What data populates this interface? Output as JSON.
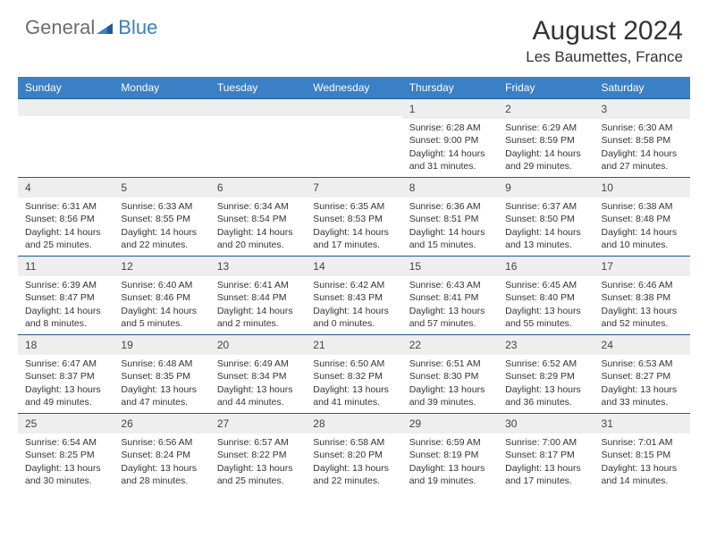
{
  "logo": {
    "general": "General",
    "blue": "Blue"
  },
  "header": {
    "title": "August 2024",
    "location": "Les Baumettes, France"
  },
  "colors": {
    "header_bg": "#3b7fc4",
    "header_text": "#ffffff",
    "daynum_bg": "#eeeeee",
    "cell_border": "#1d5a99",
    "body_text": "#333333",
    "logo_general": "#6d6d6d",
    "logo_blue": "#3b7fc4"
  },
  "weekdays": [
    "Sunday",
    "Monday",
    "Tuesday",
    "Wednesday",
    "Thursday",
    "Friday",
    "Saturday"
  ],
  "weeks": [
    [
      null,
      null,
      null,
      null,
      {
        "n": "1",
        "sr": "Sunrise: 6:28 AM",
        "ss": "Sunset: 9:00 PM",
        "d1": "Daylight: 14 hours",
        "d2": "and 31 minutes."
      },
      {
        "n": "2",
        "sr": "Sunrise: 6:29 AM",
        "ss": "Sunset: 8:59 PM",
        "d1": "Daylight: 14 hours",
        "d2": "and 29 minutes."
      },
      {
        "n": "3",
        "sr": "Sunrise: 6:30 AM",
        "ss": "Sunset: 8:58 PM",
        "d1": "Daylight: 14 hours",
        "d2": "and 27 minutes."
      }
    ],
    [
      {
        "n": "4",
        "sr": "Sunrise: 6:31 AM",
        "ss": "Sunset: 8:56 PM",
        "d1": "Daylight: 14 hours",
        "d2": "and 25 minutes."
      },
      {
        "n": "5",
        "sr": "Sunrise: 6:33 AM",
        "ss": "Sunset: 8:55 PM",
        "d1": "Daylight: 14 hours",
        "d2": "and 22 minutes."
      },
      {
        "n": "6",
        "sr": "Sunrise: 6:34 AM",
        "ss": "Sunset: 8:54 PM",
        "d1": "Daylight: 14 hours",
        "d2": "and 20 minutes."
      },
      {
        "n": "7",
        "sr": "Sunrise: 6:35 AM",
        "ss": "Sunset: 8:53 PM",
        "d1": "Daylight: 14 hours",
        "d2": "and 17 minutes."
      },
      {
        "n": "8",
        "sr": "Sunrise: 6:36 AM",
        "ss": "Sunset: 8:51 PM",
        "d1": "Daylight: 14 hours",
        "d2": "and 15 minutes."
      },
      {
        "n": "9",
        "sr": "Sunrise: 6:37 AM",
        "ss": "Sunset: 8:50 PM",
        "d1": "Daylight: 14 hours",
        "d2": "and 13 minutes."
      },
      {
        "n": "10",
        "sr": "Sunrise: 6:38 AM",
        "ss": "Sunset: 8:48 PM",
        "d1": "Daylight: 14 hours",
        "d2": "and 10 minutes."
      }
    ],
    [
      {
        "n": "11",
        "sr": "Sunrise: 6:39 AM",
        "ss": "Sunset: 8:47 PM",
        "d1": "Daylight: 14 hours",
        "d2": "and 8 minutes."
      },
      {
        "n": "12",
        "sr": "Sunrise: 6:40 AM",
        "ss": "Sunset: 8:46 PM",
        "d1": "Daylight: 14 hours",
        "d2": "and 5 minutes."
      },
      {
        "n": "13",
        "sr": "Sunrise: 6:41 AM",
        "ss": "Sunset: 8:44 PM",
        "d1": "Daylight: 14 hours",
        "d2": "and 2 minutes."
      },
      {
        "n": "14",
        "sr": "Sunrise: 6:42 AM",
        "ss": "Sunset: 8:43 PM",
        "d1": "Daylight: 14 hours",
        "d2": "and 0 minutes."
      },
      {
        "n": "15",
        "sr": "Sunrise: 6:43 AM",
        "ss": "Sunset: 8:41 PM",
        "d1": "Daylight: 13 hours",
        "d2": "and 57 minutes."
      },
      {
        "n": "16",
        "sr": "Sunrise: 6:45 AM",
        "ss": "Sunset: 8:40 PM",
        "d1": "Daylight: 13 hours",
        "d2": "and 55 minutes."
      },
      {
        "n": "17",
        "sr": "Sunrise: 6:46 AM",
        "ss": "Sunset: 8:38 PM",
        "d1": "Daylight: 13 hours",
        "d2": "and 52 minutes."
      }
    ],
    [
      {
        "n": "18",
        "sr": "Sunrise: 6:47 AM",
        "ss": "Sunset: 8:37 PM",
        "d1": "Daylight: 13 hours",
        "d2": "and 49 minutes."
      },
      {
        "n": "19",
        "sr": "Sunrise: 6:48 AM",
        "ss": "Sunset: 8:35 PM",
        "d1": "Daylight: 13 hours",
        "d2": "and 47 minutes."
      },
      {
        "n": "20",
        "sr": "Sunrise: 6:49 AM",
        "ss": "Sunset: 8:34 PM",
        "d1": "Daylight: 13 hours",
        "d2": "and 44 minutes."
      },
      {
        "n": "21",
        "sr": "Sunrise: 6:50 AM",
        "ss": "Sunset: 8:32 PM",
        "d1": "Daylight: 13 hours",
        "d2": "and 41 minutes."
      },
      {
        "n": "22",
        "sr": "Sunrise: 6:51 AM",
        "ss": "Sunset: 8:30 PM",
        "d1": "Daylight: 13 hours",
        "d2": "and 39 minutes."
      },
      {
        "n": "23",
        "sr": "Sunrise: 6:52 AM",
        "ss": "Sunset: 8:29 PM",
        "d1": "Daylight: 13 hours",
        "d2": "and 36 minutes."
      },
      {
        "n": "24",
        "sr": "Sunrise: 6:53 AM",
        "ss": "Sunset: 8:27 PM",
        "d1": "Daylight: 13 hours",
        "d2": "and 33 minutes."
      }
    ],
    [
      {
        "n": "25",
        "sr": "Sunrise: 6:54 AM",
        "ss": "Sunset: 8:25 PM",
        "d1": "Daylight: 13 hours",
        "d2": "and 30 minutes."
      },
      {
        "n": "26",
        "sr": "Sunrise: 6:56 AM",
        "ss": "Sunset: 8:24 PM",
        "d1": "Daylight: 13 hours",
        "d2": "and 28 minutes."
      },
      {
        "n": "27",
        "sr": "Sunrise: 6:57 AM",
        "ss": "Sunset: 8:22 PM",
        "d1": "Daylight: 13 hours",
        "d2": "and 25 minutes."
      },
      {
        "n": "28",
        "sr": "Sunrise: 6:58 AM",
        "ss": "Sunset: 8:20 PM",
        "d1": "Daylight: 13 hours",
        "d2": "and 22 minutes."
      },
      {
        "n": "29",
        "sr": "Sunrise: 6:59 AM",
        "ss": "Sunset: 8:19 PM",
        "d1": "Daylight: 13 hours",
        "d2": "and 19 minutes."
      },
      {
        "n": "30",
        "sr": "Sunrise: 7:00 AM",
        "ss": "Sunset: 8:17 PM",
        "d1": "Daylight: 13 hours",
        "d2": "and 17 minutes."
      },
      {
        "n": "31",
        "sr": "Sunrise: 7:01 AM",
        "ss": "Sunset: 8:15 PM",
        "d1": "Daylight: 13 hours",
        "d2": "and 14 minutes."
      }
    ]
  ]
}
